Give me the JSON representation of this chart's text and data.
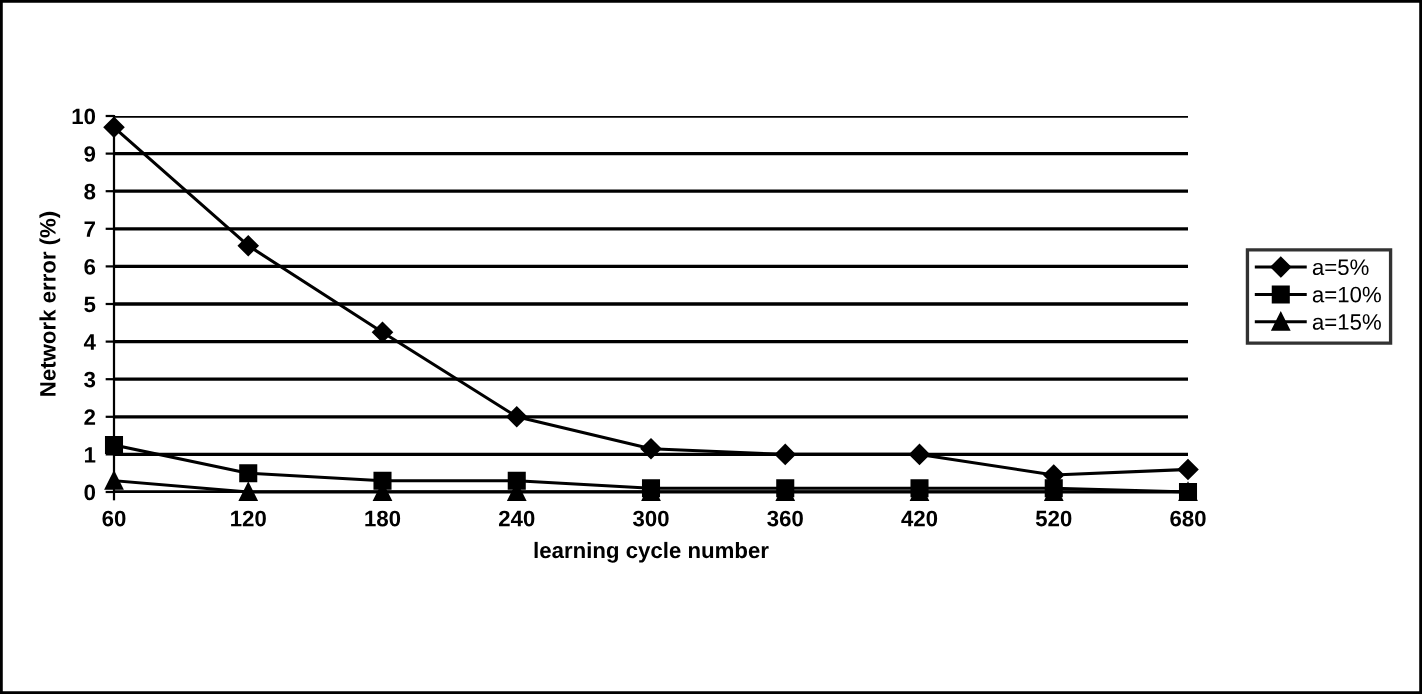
{
  "chart_data": {
    "type": "line",
    "xlabel": "learning cycle number",
    "ylabel": "Network error (%)",
    "categories": [
      "60",
      "120",
      "180",
      "240",
      "300",
      "360",
      "420",
      "520",
      "680"
    ],
    "series": [
      {
        "name": "a=5%",
        "color": "#000000",
        "marker": "diamond",
        "values": [
          9.7,
          6.55,
          4.25,
          2.0,
          1.15,
          1.0,
          1.0,
          0.45,
          0.6
        ]
      },
      {
        "name": "a=10%",
        "color": "#000000",
        "marker": "square",
        "values": [
          1.25,
          0.5,
          0.3,
          0.3,
          0.1,
          0.1,
          0.1,
          0.1,
          0.0
        ]
      },
      {
        "name": "a=15%",
        "color": "#000000",
        "marker": "triangle",
        "values": [
          0.3,
          0.0,
          0.0,
          0.0,
          0.0,
          0.0,
          0.0,
          0.0,
          0.0
        ]
      }
    ],
    "ylim": [
      0,
      10
    ],
    "yticks": [
      0,
      1,
      2,
      3,
      4,
      5,
      6,
      7,
      8,
      9,
      10
    ],
    "grid": "y",
    "legend": "right",
    "line_style": "solid"
  }
}
